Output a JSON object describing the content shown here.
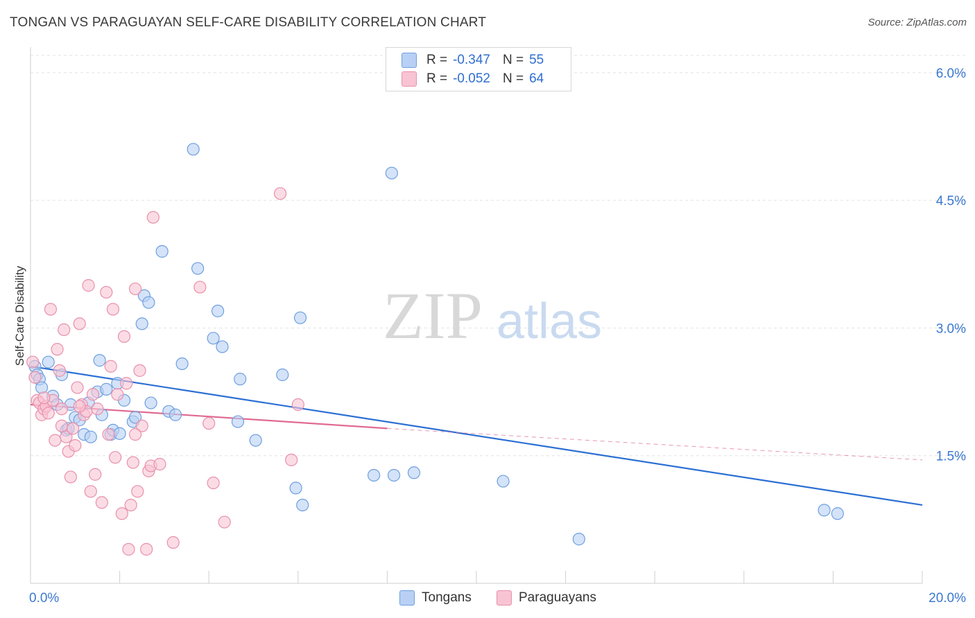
{
  "title": "TONGAN VS PARAGUAYAN SELF-CARE DISABILITY CORRELATION CHART",
  "source": "Source: ZipAtlas.com",
  "colors": {
    "tongan_fill": "#b8d0f4",
    "tongan_stroke": "#6f9fdf",
    "tongan_line": "#2b6fd4",
    "paraguayan_fill": "#f8c4d4",
    "paraguayan_stroke": "#e890ac",
    "paraguayan_line": "#e06a92",
    "axis_label": "#3a78d0",
    "grid": "#e2e2e2"
  },
  "legend": {
    "r_label": "R =",
    "n_label": "N =",
    "tongan": {
      "r": "-0.347",
      "n": "55"
    },
    "paraguayan": {
      "r": "-0.052",
      "n": "64"
    }
  },
  "bottom_legend": {
    "tongan": "Tongans",
    "paraguayan": "Paraguayans"
  },
  "watermark": {
    "zip": "ZIP",
    "atlas": "atlas"
  },
  "chart_data": {
    "type": "scatter",
    "title": "TONGAN VS PARAGUAYAN SELF-CARE DISABILITY CORRELATION CHART",
    "xlabel": "",
    "ylabel": "Self-Care Disability",
    "xlim": [
      0,
      20
    ],
    "ylim": [
      0,
      6.3
    ],
    "x_tick_labels": [
      "0.0%",
      "20.0%"
    ],
    "y_ticks": [
      1.5,
      3.0,
      4.5,
      6.0
    ],
    "y_tick_labels": [
      "1.5%",
      "3.0%",
      "4.5%",
      "6.0%"
    ],
    "grid": "horizontal dashed",
    "legend_position": "top-center",
    "series": [
      {
        "name": "Tongans",
        "trend": {
          "x": [
            0,
            20
          ],
          "y": [
            2.55,
            0.92
          ]
        },
        "points": [
          [
            0.1,
            2.55
          ],
          [
            0.15,
            2.45
          ],
          [
            0.2,
            2.4
          ],
          [
            0.25,
            2.3
          ],
          [
            0.4,
            2.6
          ],
          [
            0.5,
            2.2
          ],
          [
            0.6,
            2.1
          ],
          [
            0.7,
            2.45
          ],
          [
            0.8,
            1.8
          ],
          [
            0.85,
            1.82
          ],
          [
            0.9,
            2.1
          ],
          [
            1.0,
            1.95
          ],
          [
            1.1,
            1.92
          ],
          [
            1.2,
            1.75
          ],
          [
            1.3,
            2.12
          ],
          [
            1.35,
            1.72
          ],
          [
            1.5,
            2.25
          ],
          [
            1.55,
            2.62
          ],
          [
            1.6,
            1.98
          ],
          [
            1.7,
            2.28
          ],
          [
            1.8,
            1.75
          ],
          [
            1.85,
            1.8
          ],
          [
            1.95,
            2.35
          ],
          [
            2.0,
            1.76
          ],
          [
            2.1,
            2.15
          ],
          [
            2.3,
            1.9
          ],
          [
            2.35,
            1.95
          ],
          [
            2.5,
            3.05
          ],
          [
            2.55,
            3.38
          ],
          [
            2.65,
            3.3
          ],
          [
            2.7,
            2.12
          ],
          [
            2.95,
            3.9
          ],
          [
            3.1,
            2.02
          ],
          [
            3.25,
            1.98
          ],
          [
            3.4,
            2.58
          ],
          [
            3.65,
            5.1
          ],
          [
            3.75,
            3.7
          ],
          [
            4.1,
            2.88
          ],
          [
            4.2,
            3.2
          ],
          [
            4.3,
            2.78
          ],
          [
            4.65,
            1.9
          ],
          [
            4.7,
            2.4
          ],
          [
            5.05,
            1.68
          ],
          [
            5.65,
            2.45
          ],
          [
            5.95,
            1.12
          ],
          [
            6.05,
            3.12
          ],
          [
            6.1,
            0.92
          ],
          [
            7.7,
            1.27
          ],
          [
            8.1,
            4.82
          ],
          [
            8.15,
            1.27
          ],
          [
            8.6,
            1.3
          ],
          [
            10.6,
            1.2
          ],
          [
            12.3,
            0.52
          ],
          [
            17.8,
            0.86
          ],
          [
            18.1,
            0.82
          ]
        ]
      },
      {
        "name": "Paraguayans",
        "trend": {
          "x": [
            0,
            8
          ],
          "y": [
            2.1,
            1.82
          ]
        },
        "trend_extension": {
          "x": [
            8,
            20
          ],
          "y": [
            1.82,
            1.45
          ]
        },
        "points": [
          [
            0.05,
            2.6
          ],
          [
            0.1,
            2.42
          ],
          [
            0.15,
            2.15
          ],
          [
            0.2,
            2.12
          ],
          [
            0.25,
            1.98
          ],
          [
            0.3,
            2.05
          ],
          [
            0.35,
            2.08
          ],
          [
            0.4,
            2.0
          ],
          [
            0.45,
            3.22
          ],
          [
            0.5,
            2.15
          ],
          [
            0.55,
            1.68
          ],
          [
            0.6,
            2.75
          ],
          [
            0.65,
            2.5
          ],
          [
            0.7,
            1.85
          ],
          [
            0.75,
            2.98
          ],
          [
            0.8,
            1.72
          ],
          [
            0.85,
            1.55
          ],
          [
            0.9,
            1.25
          ],
          [
            0.95,
            1.82
          ],
          [
            1.0,
            1.62
          ],
          [
            1.05,
            2.3
          ],
          [
            1.1,
            3.05
          ],
          [
            1.15,
            2.1
          ],
          [
            1.2,
            1.98
          ],
          [
            1.25,
            2.02
          ],
          [
            1.3,
            3.5
          ],
          [
            1.35,
            1.08
          ],
          [
            1.4,
            2.22
          ],
          [
            1.45,
            1.28
          ],
          [
            1.5,
            2.05
          ],
          [
            1.6,
            0.95
          ],
          [
            1.7,
            3.42
          ],
          [
            1.75,
            1.75
          ],
          [
            1.8,
            2.55
          ],
          [
            1.85,
            3.22
          ],
          [
            1.9,
            1.48
          ],
          [
            1.95,
            2.22
          ],
          [
            2.05,
            0.82
          ],
          [
            2.1,
            2.9
          ],
          [
            2.15,
            2.35
          ],
          [
            2.2,
            0.4
          ],
          [
            2.25,
            0.92
          ],
          [
            2.3,
            1.42
          ],
          [
            2.35,
            3.46
          ],
          [
            2.4,
            1.08
          ],
          [
            2.45,
            2.5
          ],
          [
            2.5,
            1.85
          ],
          [
            2.6,
            0.4
          ],
          [
            2.65,
            1.32
          ],
          [
            2.7,
            1.38
          ],
          [
            2.75,
            4.3
          ],
          [
            2.9,
            1.4
          ],
          [
            3.2,
            0.48
          ],
          [
            3.8,
            3.48
          ],
          [
            4.0,
            1.88
          ],
          [
            4.1,
            1.18
          ],
          [
            4.35,
            0.72
          ],
          [
            5.6,
            4.58
          ],
          [
            5.85,
            1.45
          ],
          [
            6.0,
            2.1
          ],
          [
            0.3,
            2.18
          ],
          [
            0.7,
            2.05
          ],
          [
            1.1,
            2.08
          ],
          [
            2.35,
            1.75
          ]
        ]
      }
    ]
  }
}
